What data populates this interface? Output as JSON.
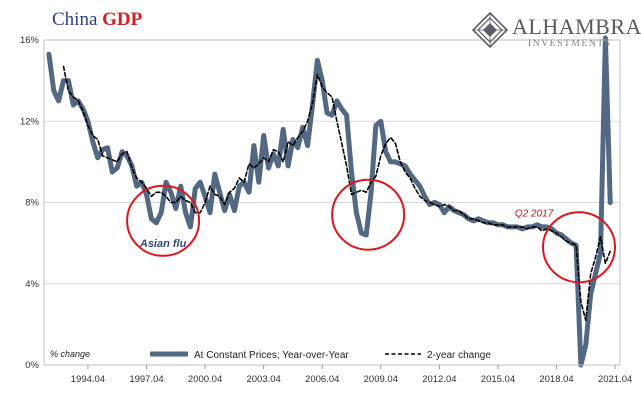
{
  "header": {
    "title_part1": "China ",
    "title_part2": "GDP"
  },
  "brand": {
    "name": "ALHAMBRA",
    "subtitle": "INVESTMENTS",
    "logo_icon": "alhambra-diamond-logo-icon"
  },
  "colors": {
    "series_main": "#536882",
    "series_dashed": "#000000",
    "circle": "#e0141c",
    "grid": "#d9d9d9"
  },
  "chart_data": {
    "type": "line",
    "title": "China GDP",
    "ylabel": "% change",
    "ylim": [
      0,
      16
    ],
    "yticks": [
      0,
      4,
      8,
      12,
      16
    ],
    "ytick_labels": [
      "0%",
      "4%",
      "8%",
      "12%",
      "16%"
    ],
    "xlim": [
      1992.0,
      2021.5
    ],
    "xticks": [
      1994.25,
      1997.25,
      2000.25,
      2003.25,
      2006.25,
      2009.25,
      2012.25,
      2015.25,
      2018.25,
      2021.25
    ],
    "xtick_labels": [
      "1994.04",
      "1997.04",
      "2000.04",
      "2003.04",
      "2006.04",
      "2009.04",
      "2012.04",
      "2015.04",
      "2018.04",
      "2021.04"
    ],
    "grid": true,
    "legend_position": "bottom",
    "series": [
      {
        "name": "At Constant Prices; Year-over-Year",
        "style": "solid",
        "points": [
          [
            1992.25,
            15.3
          ],
          [
            1992.5,
            13.5
          ],
          [
            1992.75,
            13.0
          ],
          [
            1993.0,
            14.0
          ],
          [
            1993.25,
            14.0
          ],
          [
            1993.5,
            12.8
          ],
          [
            1993.75,
            13.0
          ],
          [
            1994.0,
            12.6
          ],
          [
            1994.25,
            12.0
          ],
          [
            1994.5,
            11.0
          ],
          [
            1994.75,
            10.2
          ],
          [
            1995.0,
            10.6
          ],
          [
            1995.25,
            10.7
          ],
          [
            1995.5,
            9.5
          ],
          [
            1995.75,
            9.7
          ],
          [
            1996.0,
            10.5
          ],
          [
            1996.25,
            10.3
          ],
          [
            1996.5,
            9.8
          ],
          [
            1996.75,
            8.8
          ],
          [
            1997.0,
            9.0
          ],
          [
            1997.25,
            8.4
          ],
          [
            1997.5,
            7.2
          ],
          [
            1997.75,
            7.0
          ],
          [
            1998.0,
            7.5
          ],
          [
            1998.25,
            9.0
          ],
          [
            1998.5,
            8.5
          ],
          [
            1998.75,
            7.7
          ],
          [
            1999.0,
            8.8
          ],
          [
            1999.25,
            7.5
          ],
          [
            1999.5,
            6.8
          ],
          [
            1999.75,
            8.7
          ],
          [
            2000.0,
            9.0
          ],
          [
            2000.25,
            8.3
          ],
          [
            2000.5,
            7.5
          ],
          [
            2000.75,
            9.4
          ],
          [
            2001.0,
            8.5
          ],
          [
            2001.25,
            7.6
          ],
          [
            2001.5,
            8.4
          ],
          [
            2001.75,
            7.6
          ],
          [
            2002.0,
            8.8
          ],
          [
            2002.25,
            9.0
          ],
          [
            2002.5,
            8.5
          ],
          [
            2002.75,
            10.8
          ],
          [
            2003.0,
            9.0
          ],
          [
            2003.25,
            11.3
          ],
          [
            2003.5,
            9.7
          ],
          [
            2003.75,
            10.4
          ],
          [
            2004.0,
            9.8
          ],
          [
            2004.25,
            11.6
          ],
          [
            2004.5,
            9.8
          ],
          [
            2004.75,
            11.1
          ],
          [
            2005.0,
            10.7
          ],
          [
            2005.25,
            11.7
          ],
          [
            2005.5,
            10.8
          ],
          [
            2005.75,
            12.8
          ],
          [
            2006.0,
            15.0
          ],
          [
            2006.25,
            14.0
          ],
          [
            2006.5,
            12.4
          ],
          [
            2006.75,
            12.3
          ],
          [
            2007.0,
            13.0
          ],
          [
            2007.25,
            12.6
          ],
          [
            2007.5,
            12.3
          ],
          [
            2007.75,
            9.5
          ],
          [
            2008.0,
            7.5
          ],
          [
            2008.25,
            6.5
          ],
          [
            2008.5,
            6.4
          ],
          [
            2008.75,
            8.5
          ],
          [
            2009.0,
            11.8
          ],
          [
            2009.25,
            12.0
          ],
          [
            2009.5,
            10.5
          ],
          [
            2009.75,
            10.0
          ],
          [
            2010.0,
            10.0
          ],
          [
            2010.25,
            9.9
          ],
          [
            2010.5,
            9.8
          ],
          [
            2010.75,
            9.4
          ],
          [
            2011.0,
            9.1
          ],
          [
            2011.25,
            8.8
          ],
          [
            2011.5,
            8.3
          ],
          [
            2011.75,
            7.9
          ],
          [
            2012.0,
            8.0
          ],
          [
            2012.25,
            7.9
          ],
          [
            2012.5,
            7.5
          ],
          [
            2012.75,
            7.8
          ],
          [
            2013.0,
            7.6
          ],
          [
            2013.25,
            7.5
          ],
          [
            2013.5,
            7.4
          ],
          [
            2013.75,
            7.2
          ],
          [
            2014.0,
            7.1
          ],
          [
            2014.25,
            7.2
          ],
          [
            2014.5,
            7.1
          ],
          [
            2014.75,
            7.0
          ],
          [
            2015.0,
            7.0
          ],
          [
            2015.25,
            6.9
          ],
          [
            2015.5,
            6.9
          ],
          [
            2015.75,
            6.8
          ],
          [
            2016.0,
            6.8
          ],
          [
            2016.25,
            6.8
          ],
          [
            2016.5,
            6.7
          ],
          [
            2016.75,
            6.8
          ],
          [
            2017.0,
            6.8
          ],
          [
            2017.25,
            6.9
          ],
          [
            2017.5,
            6.8
          ],
          [
            2017.75,
            6.8
          ],
          [
            2018.0,
            6.7
          ],
          [
            2018.25,
            6.5
          ],
          [
            2018.5,
            6.4
          ],
          [
            2018.75,
            6.2
          ],
          [
            2019.0,
            6.0
          ],
          [
            2019.25,
            5.9
          ],
          [
            2019.5,
            0.0
          ],
          [
            2019.75,
            1.0
          ],
          [
            2020.0,
            3.5
          ],
          [
            2020.25,
            4.5
          ],
          [
            2020.5,
            5.5
          ],
          [
            2020.75,
            16.5
          ],
          [
            2021.0,
            8.0
          ]
        ]
      },
      {
        "name": "2-year change",
        "style": "dashed",
        "points": [
          [
            1993.0,
            14.7
          ],
          [
            1993.25,
            13.5
          ],
          [
            1993.5,
            13.2
          ],
          [
            1993.75,
            13.0
          ],
          [
            1994.0,
            12.5
          ],
          [
            1994.25,
            11.8
          ],
          [
            1994.5,
            11.3
          ],
          [
            1994.75,
            11.1
          ],
          [
            1995.0,
            10.3
          ],
          [
            1995.25,
            10.2
          ],
          [
            1995.5,
            10.1
          ],
          [
            1995.75,
            10.0
          ],
          [
            1996.0,
            10.4
          ],
          [
            1996.25,
            10.5
          ],
          [
            1996.5,
            9.7
          ],
          [
            1996.75,
            9.2
          ],
          [
            1997.0,
            9.0
          ],
          [
            1997.25,
            8.7
          ],
          [
            1997.5,
            8.3
          ],
          [
            1997.75,
            8.5
          ],
          [
            1998.0,
            8.5
          ],
          [
            1998.25,
            8.3
          ],
          [
            1998.5,
            8.0
          ],
          [
            1998.75,
            8.0
          ],
          [
            1999.0,
            8.3
          ],
          [
            1999.25,
            8.1
          ],
          [
            1999.5,
            8.0
          ],
          [
            1999.75,
            7.5
          ],
          [
            2000.0,
            7.5
          ],
          [
            2000.25,
            8.0
          ],
          [
            2000.5,
            8.8
          ],
          [
            2000.75,
            8.4
          ],
          [
            2001.0,
            8.3
          ],
          [
            2001.25,
            7.9
          ],
          [
            2001.5,
            8.5
          ],
          [
            2001.75,
            8.7
          ],
          [
            2002.0,
            9.2
          ],
          [
            2002.25,
            9.0
          ],
          [
            2002.5,
            9.9
          ],
          [
            2002.75,
            9.7
          ],
          [
            2003.0,
            9.9
          ],
          [
            2003.25,
            10.2
          ],
          [
            2003.5,
            10.0
          ],
          [
            2003.75,
            10.6
          ],
          [
            2004.0,
            10.5
          ],
          [
            2004.25,
            10.0
          ],
          [
            2004.5,
            11.0
          ],
          [
            2004.75,
            10.8
          ],
          [
            2005.0,
            11.2
          ],
          [
            2005.25,
            11.5
          ],
          [
            2005.5,
            12.0
          ],
          [
            2005.75,
            12.9
          ],
          [
            2006.0,
            14.3
          ],
          [
            2006.25,
            13.7
          ],
          [
            2006.5,
            13.4
          ],
          [
            2006.75,
            13.2
          ],
          [
            2007.0,
            12.0
          ],
          [
            2007.25,
            10.9
          ],
          [
            2007.5,
            9.8
          ],
          [
            2007.75,
            8.4
          ],
          [
            2008.0,
            8.5
          ],
          [
            2008.25,
            8.6
          ],
          [
            2008.5,
            8.5
          ],
          [
            2008.75,
            9.0
          ],
          [
            2009.0,
            9.3
          ],
          [
            2009.25,
            10.3
          ],
          [
            2009.5,
            10.9
          ],
          [
            2009.75,
            11.2
          ],
          [
            2010.0,
            10.9
          ],
          [
            2010.25,
            10.0
          ],
          [
            2010.5,
            9.5
          ],
          [
            2010.75,
            9.2
          ],
          [
            2011.0,
            8.7
          ],
          [
            2011.25,
            8.3
          ],
          [
            2011.5,
            8.1
          ],
          [
            2011.75,
            8.0
          ],
          [
            2012.0,
            7.9
          ],
          [
            2012.25,
            7.8
          ],
          [
            2012.5,
            7.9
          ],
          [
            2012.75,
            7.8
          ],
          [
            2013.0,
            7.6
          ],
          [
            2013.25,
            7.6
          ],
          [
            2013.5,
            7.4
          ],
          [
            2013.75,
            7.2
          ],
          [
            2014.0,
            7.2
          ],
          [
            2014.25,
            7.1
          ],
          [
            2014.5,
            7.0
          ],
          [
            2014.75,
            7.0
          ],
          [
            2015.0,
            6.9
          ],
          [
            2015.25,
            6.9
          ],
          [
            2015.5,
            6.9
          ],
          [
            2015.75,
            6.8
          ],
          [
            2016.0,
            6.8
          ],
          [
            2016.25,
            6.8
          ],
          [
            2016.5,
            6.8
          ],
          [
            2016.75,
            6.7
          ],
          [
            2017.0,
            6.8
          ],
          [
            2017.25,
            6.8
          ],
          [
            2017.5,
            6.6
          ],
          [
            2017.75,
            6.7
          ],
          [
            2018.0,
            6.6
          ],
          [
            2018.25,
            6.5
          ],
          [
            2018.5,
            6.3
          ],
          [
            2018.75,
            6.1
          ],
          [
            2019.0,
            6.0
          ],
          [
            2019.25,
            5.9
          ],
          [
            2019.5,
            3.1
          ],
          [
            2019.75,
            2.2
          ],
          [
            2020.0,
            4.5
          ],
          [
            2020.25,
            5.3
          ],
          [
            2020.5,
            6.3
          ],
          [
            2020.75,
            5.0
          ],
          [
            2021.0,
            5.6
          ]
        ]
      }
    ],
    "annotations": [
      {
        "text": "Asian flu",
        "x": 1998.1,
        "y": 6.0,
        "style": "blue"
      },
      {
        "text": "Q2 2017",
        "x": 2017.1,
        "y": 7.5,
        "style": "red"
      }
    ],
    "highlight_circles": [
      {
        "cx": 1998.1,
        "cy": 7.1
      },
      {
        "cx": 2008.6,
        "cy": 7.4
      },
      {
        "cx": 2019.4,
        "cy": 5.8
      }
    ],
    "note": "% change"
  }
}
